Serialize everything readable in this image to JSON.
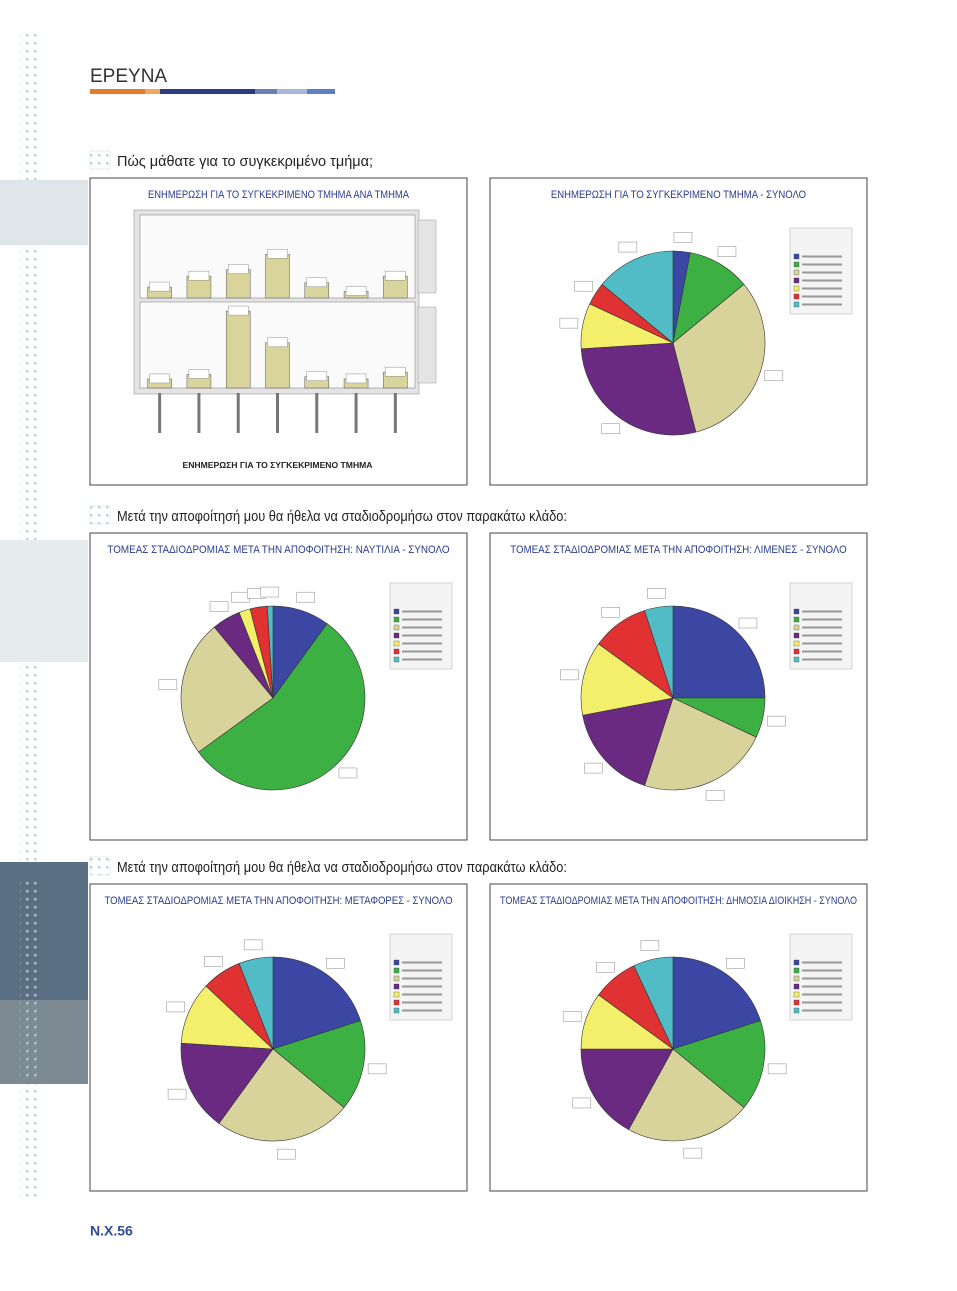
{
  "header": {
    "title": "ΕΡΕΥΝΑ"
  },
  "sections": [
    {
      "heading": "Πώς μάθατε για το συγκεκριμένο τμήμα;",
      "panels": [
        {
          "title": "ΕΝΗΜΕΡΩΣΗ ΓΙΑ ΤΟ ΣΥΓΚΕΚΡΙΜΕΝΟ ΤΜΗΜΑ ΑΝΑ ΤΜΗΜΑ",
          "chart": {
            "type": "bar",
            "x_label": "ΕΝΗΜΕΡΩΣΗ ΓΙΑ ΤΟ ΣΥΓΚΕΚΡΙΜΕΝΟ ΤΜΗΜΑ",
            "color": "#d9d49b",
            "ylim": [
              0,
              38
            ],
            "groups": [
              {
                "values": [
                  5,
                  10,
                  13,
                  20,
                  7,
                  3,
                  10
                ]
              },
              {
                "values": [
                  4,
                  6,
                  34,
                  20,
                  5,
                  4,
                  7
                ]
              }
            ]
          }
        },
        {
          "title": "ΕΝΗΜΕΡΩΣΗ ΓΙΑ ΤΟ ΣΥΓΚΕΚΡΙΜΕΝΟ ΤΜΗΜΑ - ΣΥΝΟΛΟ",
          "chart": {
            "type": "pie",
            "values": [
              3,
              11,
              32,
              28,
              8,
              4,
              14
            ],
            "colors": [
              "#3b47a3",
              "#3cb043",
              "#d8d39a",
              "#6a2a82",
              "#f4ef6a",
              "#e03232",
              "#52bcc6"
            ]
          }
        }
      ]
    },
    {
      "heading": "Μετά την αποφοίτησή μου θα ήθελα να σταδιοδρομήσω στον παρακάτω κλάδο:",
      "panels": [
        {
          "title": "ΤΟΜΕΑΣ ΣΤΑΔΙΟΔΡΟΜΙΑΣ ΜΕΤΑ ΤΗΝ ΑΠΟΦΟΙΤΗΣΗ: ΝΑΥΤΙΛΙΑ - ΣΥΝΟΛΟ",
          "chart": {
            "type": "pie",
            "values": [
              10,
              55,
              24,
              5,
              2,
              3,
              1
            ],
            "colors": [
              "#3b47a3",
              "#3cb043",
              "#d8d39a",
              "#6a2a82",
              "#f4ef6a",
              "#e03232",
              "#52bcc6"
            ]
          }
        },
        {
          "title": "ΤΟΜΕΑΣ ΣΤΑΔΙΟΔΡΟΜΙΑΣ ΜΕΤΑ ΤΗΝ ΑΠΟΦΟΙΤΗΣΗ: ΛΙΜΕΝΕΣ - ΣΥΝΟΛΟ",
          "chart": {
            "type": "pie",
            "values": [
              25,
              7,
              23,
              17,
              13,
              10,
              5
            ],
            "colors": [
              "#3b47a3",
              "#3cb043",
              "#d8d39a",
              "#6a2a82",
              "#f4ef6a",
              "#e03232",
              "#52bcc6"
            ]
          }
        }
      ]
    },
    {
      "heading": "Μετά την αποφοίτησή μου θα ήθελα να σταδιοδρομήσω στον παρακάτω κλάδο:",
      "panels": [
        {
          "title": "ΤΟΜΕΑΣ ΣΤΑΔΙΟΔΡΟΜΙΑΣ ΜΕΤΑ ΤΗΝ ΑΠΟΦΟΙΤΗΣΗ: ΜΕΤΑΦΟΡΕΣ - ΣΥΝΟΛΟ",
          "chart": {
            "type": "pie",
            "values": [
              20,
              16,
              24,
              16,
              11,
              7,
              6
            ],
            "colors": [
              "#3b47a3",
              "#3cb043",
              "#d8d39a",
              "#6a2a82",
              "#f4ef6a",
              "#e03232",
              "#52bcc6"
            ]
          }
        },
        {
          "title": "ΤΟΜΕΑΣ ΣΤΑΔΙΟΔΡΟΜΙΑΣ ΜΕΤΑ ΤΗΝ ΑΠΟΦΟΙΤΗΣΗ: ΔΗΜΟΣΙΑ ΔΙΟΙΚΗΣΗ - ΣΥΝΟΛΟ",
          "chart": {
            "type": "pie",
            "values": [
              20,
              16,
              22,
              17,
              10,
              8,
              7
            ],
            "colors": [
              "#3b47a3",
              "#3cb043",
              "#d8d39a",
              "#6a2a82",
              "#f4ef6a",
              "#e03232",
              "#52bcc6"
            ]
          }
        }
      ]
    }
  ],
  "footer": {
    "page_number": "Ν.Χ.56"
  }
}
